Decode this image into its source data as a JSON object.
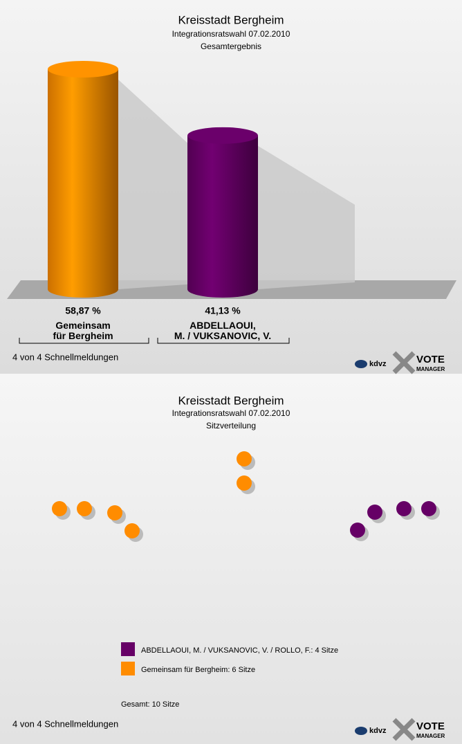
{
  "chart_data": [
    {
      "type": "bar",
      "title": "Kreisstadt Bergheim",
      "subtitle": "Integrationsratswahl 07.02.2010",
      "caption": "Gesamtergebnis",
      "categories": [
        "Gemeinsam\nfür Bergheim",
        "ABDELLAOUI,\nM. / VUKSANOVIC, V."
      ],
      "values": [
        58.87,
        41.13
      ],
      "value_labels": [
        "58,87 %",
        "41,13 %"
      ],
      "colors": [
        "#ff8c00",
        "#660066"
      ],
      "footnote": "4 von 4 Schnellmeldungen"
    },
    {
      "type": "seats",
      "title": "Kreisstadt Bergheim",
      "subtitle": "Integrationsratswahl 07.02.2010",
      "caption": "Sitzverteilung",
      "series": [
        {
          "name": "ABDELLAOUI, M. / VUKSANOVIC, V. / ROLLO, F.: 4 Sitze",
          "color": "#660066",
          "values": [
            4
          ]
        },
        {
          "name": "Gemeinsam für Bergheim: 6 Sitze",
          "color": "#ff8c00",
          "values": [
            6
          ]
        }
      ],
      "total_label": "Gesamt: 10 Sitze",
      "footnote": "4 von 4 Schnellmeldungen"
    }
  ],
  "logo": {
    "brand": "kdvz",
    "product": "VOTE",
    "product_sub": "MANAGER"
  }
}
